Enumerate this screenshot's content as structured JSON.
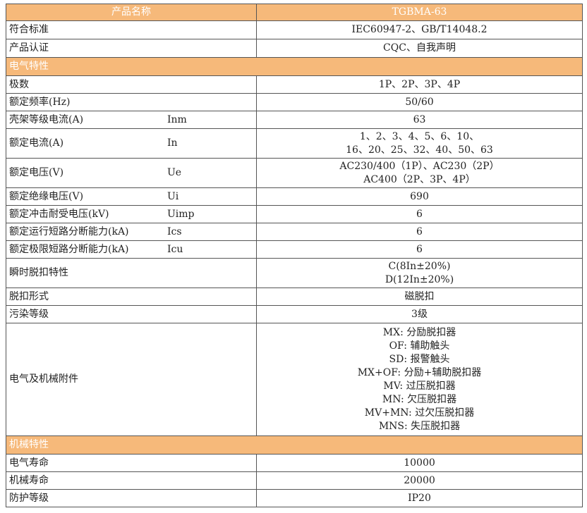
{
  "header": {
    "name_label": "产品名称",
    "model": "TGBMA-63"
  },
  "rows_top": [
    {
      "label": "符合标准",
      "value": [
        "IEC60947-2、GB/T14048.2"
      ]
    },
    {
      "label": "产品认证",
      "value": [
        "CQC、自我声明"
      ]
    }
  ],
  "section_electrical": "电气特性",
  "rows_electrical": [
    {
      "label": "极数",
      "symbol": "",
      "value": [
        "1P、2P、3P、4P"
      ]
    },
    {
      "label": "额定频率(Hz)",
      "symbol": "",
      "value": [
        "50/60"
      ]
    },
    {
      "label": "壳架等级电流(A)",
      "symbol": "Inm",
      "value": [
        "63"
      ]
    },
    {
      "label": "额定电流(A)",
      "symbol": "In",
      "value": [
        "1、2、3、4、5、6、10、",
        "16、20、25、32、40、50、63"
      ]
    },
    {
      "label": "额定电压(V)",
      "symbol": "Ue",
      "value": [
        "AC230/400（1P）、AC230（2P）",
        "AC400（2P、3P、4P）"
      ]
    },
    {
      "label": "额定绝缘电压(V)",
      "symbol": "Ui",
      "value": [
        "690"
      ]
    },
    {
      "label": "额定冲击耐受电压(kV)",
      "symbol": "Uimp",
      "value": [
        "6"
      ]
    },
    {
      "label": "额定运行短路分断能力(kA)",
      "symbol": "Ics",
      "value": [
        "6"
      ]
    },
    {
      "label": "额定极限短路分断能力(kA)",
      "symbol": "Icu",
      "value": [
        "6"
      ]
    },
    {
      "label": "瞬时脱扣特性",
      "symbol": "",
      "value": [
        "C(8In±20%)",
        "D(12In±20%)"
      ]
    },
    {
      "label": "脱扣形式",
      "symbol": "",
      "value": [
        "磁脱扣"
      ]
    },
    {
      "label": "污染等级",
      "symbol": "",
      "value": [
        "3级"
      ]
    },
    {
      "label": "电气及机械附件",
      "symbol": "",
      "value": [
        "MX: 分励脱扣器",
        "OF: 辅助触头",
        "SD: 报警触头",
        "MX+OF: 分励+辅助脱扣器",
        "MV: 过压脱扣器",
        "MN: 欠压脱扣器",
        "MV+MN: 过欠压脱扣器",
        "MNS: 失压脱扣器"
      ]
    }
  ],
  "section_mechanical": "机械特性",
  "rows_mechanical": [
    {
      "label": "电气寿命",
      "value": [
        "10000"
      ]
    },
    {
      "label": "机械寿命",
      "value": [
        "20000"
      ]
    },
    {
      "label": "防护等级",
      "value": [
        "IP20"
      ]
    }
  ],
  "colors": {
    "header_bg": "#f6b97a",
    "border": "#555555"
  }
}
